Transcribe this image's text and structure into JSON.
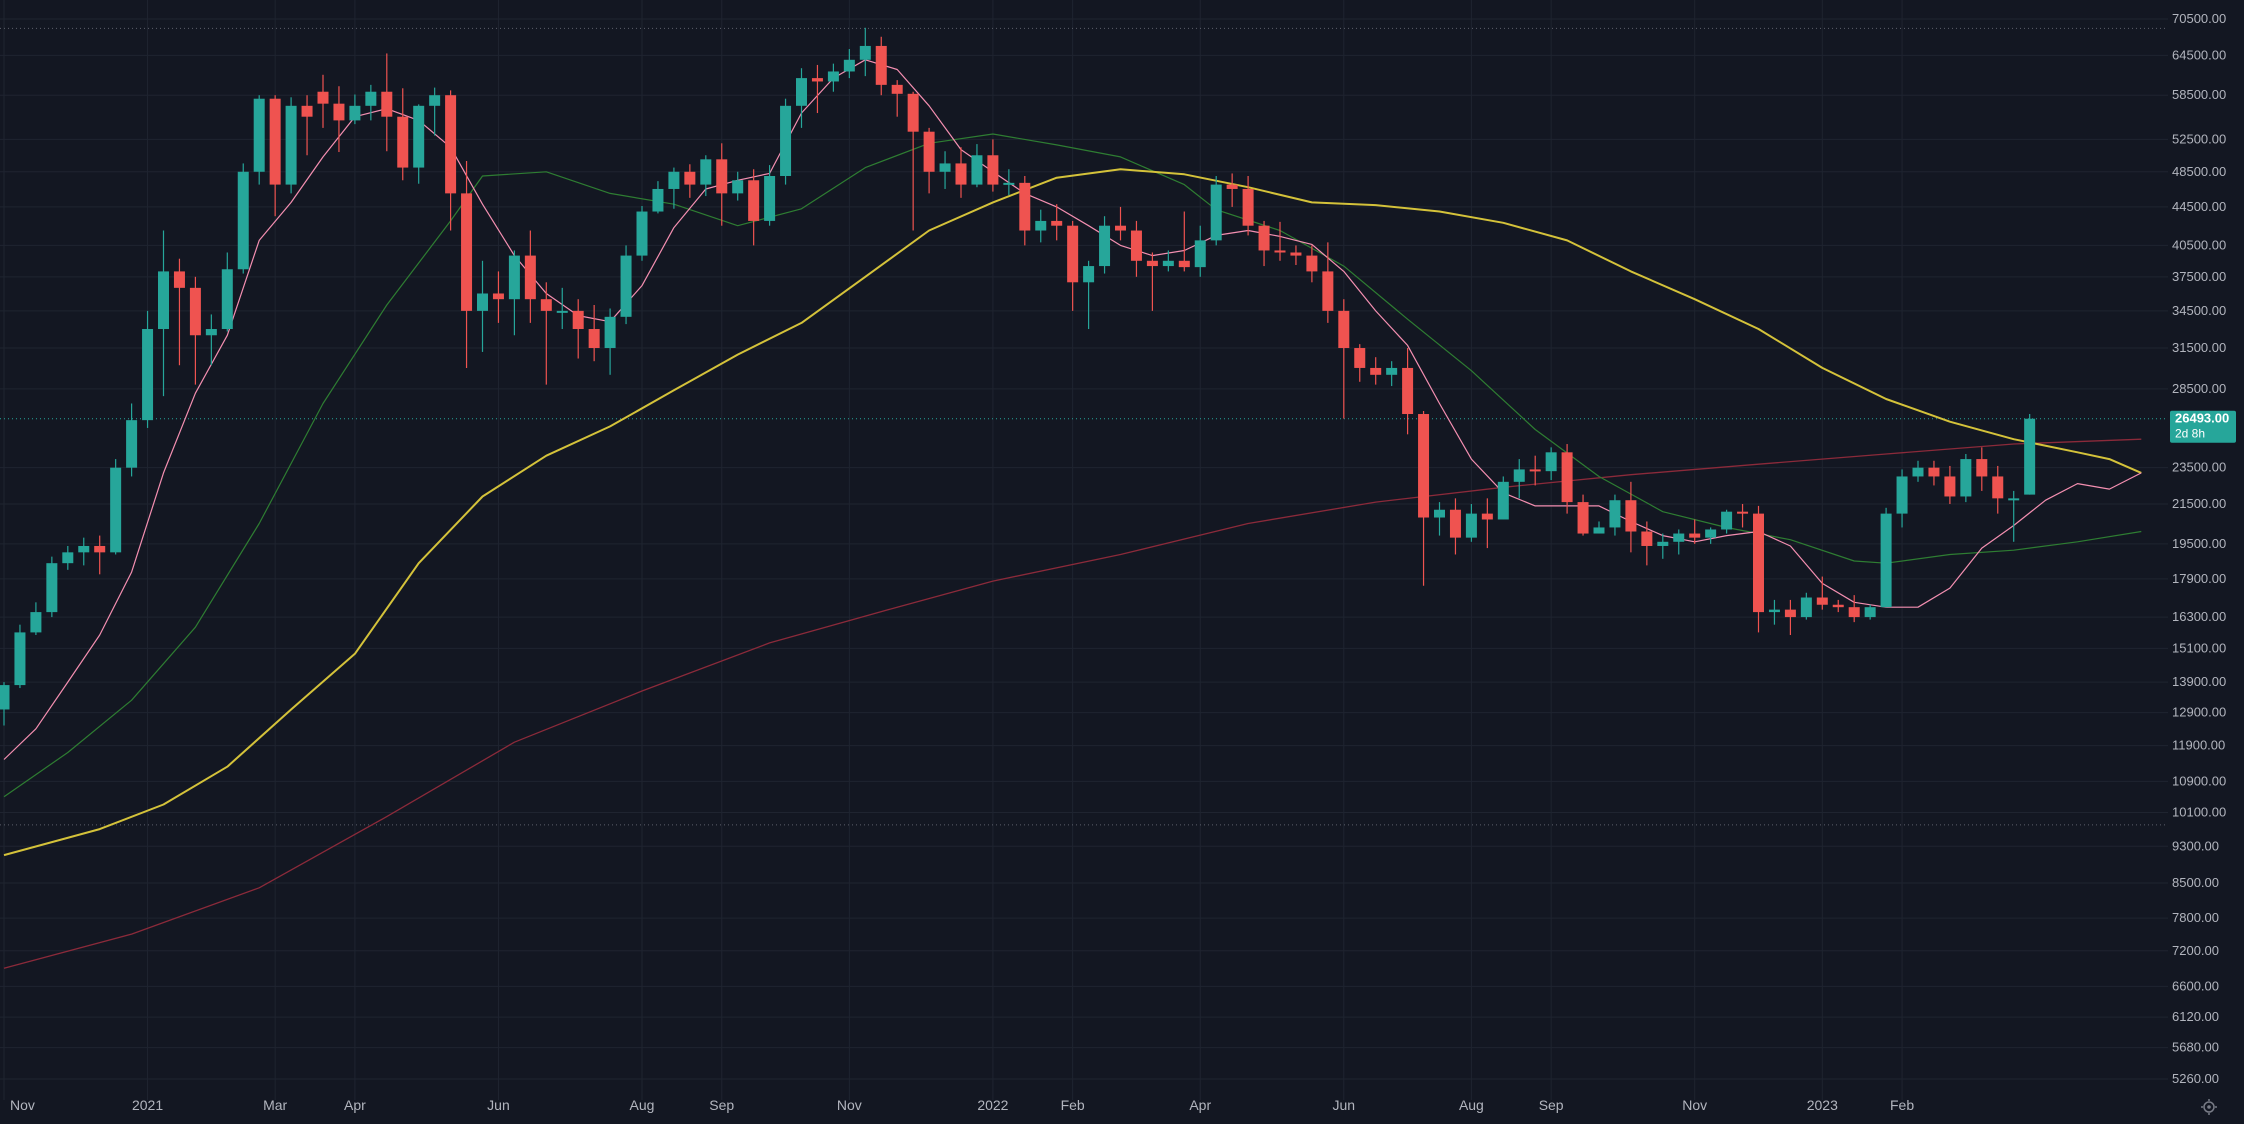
{
  "colors": {
    "background": "#131722",
    "grid": "#1f2430",
    "up": "#26a69a",
    "down": "#ef5350",
    "ma_short": "#f48fb1",
    "ma_mid": "#2e7d32",
    "ma_long": "#d4c23a",
    "ma_200": "#8b2a3a",
    "axis_text": "#b2b5be",
    "price_line": "#26a69a",
    "ref_line": "#5d606b"
  },
  "chart_data": {
    "type": "candlestick",
    "scale": "log",
    "ylim": [
      5000,
      71500
    ],
    "y_ticks": [
      "70500.00",
      "64500.00",
      "58500.00",
      "52500.00",
      "48500.00",
      "44500.00",
      "40500.00",
      "37500.00",
      "34500.00",
      "31500.00",
      "28500.00",
      "23500.00",
      "21500.00",
      "19500.00",
      "17900.00",
      "16300.00",
      "15100.00",
      "13900.00",
      "12900.00",
      "11900.00",
      "10900.00",
      "10100.00",
      "9300.00",
      "8500.00",
      "7800.00",
      "7200.00",
      "6600.00",
      "6120.00",
      "5680.00",
      "5260.00"
    ],
    "x_labels": [
      {
        "label": "Nov",
        "w": 0
      },
      {
        "label": "2021",
        "w": 9
      },
      {
        "label": "Mar",
        "w": 17
      },
      {
        "label": "Apr",
        "w": 22
      },
      {
        "label": "Jun",
        "w": 31
      },
      {
        "label": "Aug",
        "w": 40
      },
      {
        "label": "Sep",
        "w": 45
      },
      {
        "label": "Nov",
        "w": 53
      },
      {
        "label": "2022",
        "w": 62
      },
      {
        "label": "Feb",
        "w": 67
      },
      {
        "label": "Apr",
        "w": 75
      },
      {
        "label": "Jun",
        "w": 84
      },
      {
        "label": "Aug",
        "w": 92
      },
      {
        "label": "Sep",
        "w": 97
      },
      {
        "label": "Nov",
        "w": 106
      },
      {
        "label": "2023",
        "w": 114
      },
      {
        "label": "Feb",
        "w": 119
      }
    ],
    "candles": [
      [
        13000,
        13800,
        12500,
        13900
      ],
      [
        13800,
        15700,
        13700,
        16000
      ],
      [
        15700,
        16500,
        15600,
        16900
      ],
      [
        16500,
        18600,
        16300,
        18900
      ],
      [
        18600,
        19100,
        18300,
        19400
      ],
      [
        19100,
        19400,
        18500,
        19800
      ],
      [
        19400,
        19100,
        18100,
        19900
      ],
      [
        19100,
        23500,
        19000,
        24000
      ],
      [
        23500,
        26400,
        23000,
        27500
      ],
      [
        26400,
        33000,
        25900,
        34500
      ],
      [
        33000,
        38000,
        28000,
        42000
      ],
      [
        38000,
        36500,
        30200,
        39200
      ],
      [
        36500,
        32500,
        28800,
        37500
      ],
      [
        32500,
        33000,
        30200,
        34200
      ],
      [
        33000,
        38200,
        32800,
        39800
      ],
      [
        38200,
        48500,
        37800,
        49500
      ],
      [
        48500,
        58000,
        47000,
        58500
      ],
      [
        58000,
        47000,
        43500,
        58500
      ],
      [
        47000,
        57000,
        46000,
        58200
      ],
      [
        57000,
        55500,
        50500,
        58500
      ],
      [
        59000,
        57300,
        54000,
        61500
      ],
      [
        57300,
        55000,
        50900,
        59800
      ],
      [
        55000,
        57000,
        54500,
        58600
      ],
      [
        57000,
        59000,
        55000,
        60000
      ],
      [
        59000,
        55500,
        51000,
        64800
      ],
      [
        55500,
        49000,
        47500,
        59500
      ],
      [
        49000,
        57000,
        47100,
        57200
      ],
      [
        57000,
        58500,
        53000,
        59600
      ],
      [
        58500,
        46000,
        42000,
        59200
      ],
      [
        46000,
        34500,
        30000,
        49800
      ],
      [
        34500,
        36000,
        31200,
        39000
      ],
      [
        36000,
        35500,
        33500,
        38000
      ],
      [
        35500,
        39500,
        32500,
        40000
      ],
      [
        39500,
        35500,
        33500,
        42000
      ],
      [
        35500,
        34500,
        28800,
        37000
      ],
      [
        34500,
        34500,
        33000,
        36500
      ],
      [
        34500,
        33000,
        30700,
        35500
      ],
      [
        33000,
        31500,
        30500,
        35000
      ],
      [
        31500,
        34000,
        29500,
        34700
      ],
      [
        34000,
        39500,
        33400,
        40500
      ],
      [
        39500,
        44000,
        39000,
        44600
      ],
      [
        44000,
        46500,
        43800,
        47400
      ],
      [
        46500,
        48500,
        44300,
        49000
      ],
      [
        48500,
        47000,
        45500,
        49400
      ],
      [
        47000,
        50000,
        45700,
        50500
      ],
      [
        50000,
        46000,
        42500,
        52000
      ],
      [
        46000,
        47500,
        45200,
        48500
      ],
      [
        47500,
        43000,
        40500,
        48800
      ],
      [
        43000,
        48000,
        42500,
        49300
      ],
      [
        48000,
        57000,
        47000,
        58000
      ],
      [
        57000,
        61000,
        54000,
        62500
      ],
      [
        61000,
        60500,
        56000,
        63000
      ],
      [
        60500,
        62000,
        59000,
        63200
      ],
      [
        62000,
        63800,
        61000,
        65500
      ],
      [
        63800,
        66000,
        61300,
        69000
      ],
      [
        66000,
        60000,
        58500,
        67500
      ],
      [
        60000,
        58700,
        55500,
        60700
      ],
      [
        58700,
        53500,
        42000,
        59000
      ],
      [
        53500,
        48500,
        46000,
        54000
      ],
      [
        48500,
        49500,
        46500,
        51000
      ],
      [
        49500,
        47000,
        45500,
        51500
      ],
      [
        47000,
        50500,
        46700,
        51900
      ],
      [
        50500,
        47000,
        46200,
        52500
      ],
      [
        47000,
        47200,
        45800,
        48800
      ],
      [
        47200,
        42000,
        40500,
        48000
      ],
      [
        42000,
        43000,
        40800,
        44200
      ],
      [
        43000,
        42500,
        41000,
        44800
      ],
      [
        42500,
        37000,
        34500,
        43000
      ],
      [
        37000,
        38500,
        33000,
        39000
      ],
      [
        38500,
        42500,
        37800,
        43500
      ],
      [
        42500,
        42000,
        41000,
        44500
      ],
      [
        42000,
        39000,
        37500,
        43000
      ],
      [
        39000,
        38500,
        34500,
        39800
      ],
      [
        38500,
        39000,
        38000,
        40000
      ],
      [
        39000,
        38400,
        38000,
        44000
      ],
      [
        38400,
        41000,
        37500,
        42500
      ],
      [
        41000,
        47000,
        40500,
        48000
      ],
      [
        47000,
        46500,
        44500,
        48300
      ],
      [
        46500,
        42500,
        41500,
        48000
      ],
      [
        42500,
        40000,
        38500,
        43000
      ],
      [
        40000,
        39800,
        39000,
        42900
      ],
      [
        39800,
        39500,
        38600,
        40500
      ],
      [
        39500,
        38000,
        37000,
        40500
      ],
      [
        38000,
        34500,
        33500,
        40800
      ],
      [
        34500,
        31500,
        26500,
        35500
      ],
      [
        31500,
        30000,
        29000,
        31800
      ],
      [
        30000,
        29500,
        28800,
        30800
      ],
      [
        29500,
        30000,
        28700,
        30500
      ],
      [
        30000,
        26800,
        25500,
        31500
      ],
      [
        26800,
        20800,
        17600,
        27000
      ],
      [
        20800,
        21200,
        19900,
        21600
      ],
      [
        21200,
        19800,
        19000,
        21800
      ],
      [
        19800,
        21000,
        19600,
        21500
      ],
      [
        21000,
        20700,
        19300,
        21800
      ],
      [
        20700,
        22700,
        20700,
        23000
      ],
      [
        22700,
        23400,
        21800,
        24000
      ],
      [
        23400,
        23300,
        22500,
        24200
      ],
      [
        23300,
        24400,
        22800,
        24700
      ],
      [
        24400,
        21600,
        21000,
        24900
      ],
      [
        21600,
        20000,
        19900,
        22000
      ],
      [
        20000,
        20300,
        20000,
        20600
      ],
      [
        20300,
        21700,
        19900,
        22000
      ],
      [
        21700,
        20100,
        19100,
        22700
      ],
      [
        20100,
        19400,
        18500,
        20600
      ],
      [
        19400,
        19600,
        18800,
        20000
      ],
      [
        19600,
        20000,
        19000,
        20200
      ],
      [
        20000,
        19800,
        19500,
        20700
      ],
      [
        19800,
        20200,
        19500,
        20300
      ],
      [
        20200,
        21100,
        20000,
        21200
      ],
      [
        21100,
        21000,
        20300,
        21500
      ],
      [
        21000,
        16500,
        15700,
        21400
      ],
      [
        16500,
        16600,
        16000,
        17000
      ],
      [
        16600,
        16300,
        15600,
        17000
      ],
      [
        16300,
        17100,
        16200,
        17300
      ],
      [
        17100,
        16800,
        16600,
        18000
      ],
      [
        16800,
        16700,
        16500,
        17000
      ],
      [
        16700,
        16300,
        16100,
        17200
      ],
      [
        16300,
        16700,
        16200,
        16800
      ],
      [
        16700,
        21000,
        16700,
        21300
      ],
      [
        21000,
        23000,
        20300,
        23400
      ],
      [
        23000,
        23500,
        22700,
        23900
      ],
      [
        23500,
        23000,
        22500,
        23900
      ],
      [
        23000,
        21900,
        21500,
        23600
      ],
      [
        21900,
        24000,
        21600,
        24300
      ],
      [
        24000,
        23000,
        22200,
        24700
      ],
      [
        23000,
        21800,
        21000,
        23600
      ],
      [
        21800,
        21800,
        19600,
        22200
      ],
      [
        22000,
        26493,
        22000,
        26800
      ]
    ],
    "ma_short": [
      [
        0,
        11500
      ],
      [
        2,
        12400
      ],
      [
        4,
        13900
      ],
      [
        6,
        15600
      ],
      [
        8,
        18200
      ],
      [
        10,
        23200
      ],
      [
        12,
        28200
      ],
      [
        14,
        32500
      ],
      [
        16,
        41000
      ],
      [
        18,
        45000
      ],
      [
        20,
        50300
      ],
      [
        22,
        55500
      ],
      [
        24,
        56600
      ],
      [
        26,
        55000
      ],
      [
        28,
        51500
      ],
      [
        30,
        44800
      ],
      [
        32,
        39500
      ],
      [
        34,
        36000
      ],
      [
        36,
        34100
      ],
      [
        38,
        33600
      ],
      [
        40,
        36700
      ],
      [
        42,
        42300
      ],
      [
        44,
        46500
      ],
      [
        46,
        47500
      ],
      [
        48,
        48300
      ],
      [
        50,
        56000
      ],
      [
        52,
        61000
      ],
      [
        54,
        63800
      ],
      [
        56,
        62300
      ],
      [
        58,
        57000
      ],
      [
        60,
        51200
      ],
      [
        62,
        48500
      ],
      [
        64,
        46000
      ],
      [
        66,
        44500
      ],
      [
        68,
        42500
      ],
      [
        70,
        40500
      ],
      [
        72,
        39500
      ],
      [
        74,
        40000
      ],
      [
        76,
        41500
      ],
      [
        78,
        42000
      ],
      [
        80,
        41400
      ],
      [
        82,
        40600
      ],
      [
        84,
        38000
      ],
      [
        86,
        34500
      ],
      [
        88,
        31700
      ],
      [
        90,
        27500
      ],
      [
        92,
        24000
      ],
      [
        94,
        22100
      ],
      [
        96,
        21400
      ],
      [
        98,
        21400
      ],
      [
        100,
        21400
      ],
      [
        102,
        20600
      ],
      [
        104,
        19900
      ],
      [
        106,
        19600
      ],
      [
        108,
        19900
      ],
      [
        110,
        20100
      ],
      [
        112,
        19400
      ],
      [
        114,
        17700
      ],
      [
        116,
        16900
      ],
      [
        118,
        16700
      ],
      [
        120,
        16700
      ],
      [
        122,
        17500
      ],
      [
        124,
        19300
      ],
      [
        126,
        20400
      ],
      [
        128,
        21700
      ],
      [
        130,
        22600
      ],
      [
        132,
        22300
      ],
      [
        134,
        23200
      ]
    ],
    "ma_mid": [
      [
        0,
        10500
      ],
      [
        4,
        11700
      ],
      [
        8,
        13300
      ],
      [
        12,
        15900
      ],
      [
        16,
        20500
      ],
      [
        20,
        27500
      ],
      [
        24,
        35000
      ],
      [
        28,
        43000
      ],
      [
        30,
        48000
      ],
      [
        34,
        48500
      ],
      [
        38,
        46000
      ],
      [
        42,
        44800
      ],
      [
        46,
        42500
      ],
      [
        50,
        44300
      ],
      [
        54,
        49000
      ],
      [
        58,
        52000
      ],
      [
        62,
        53200
      ],
      [
        66,
        51800
      ],
      [
        70,
        50300
      ],
      [
        74,
        47000
      ],
      [
        76,
        44200
      ],
      [
        80,
        42000
      ],
      [
        84,
        38500
      ],
      [
        88,
        33800
      ],
      [
        92,
        29800
      ],
      [
        96,
        25800
      ],
      [
        100,
        23000
      ],
      [
        104,
        21100
      ],
      [
        108,
        20300
      ],
      [
        112,
        19700
      ],
      [
        116,
        18700
      ],
      [
        118,
        18600
      ],
      [
        122,
        19000
      ],
      [
        126,
        19200
      ],
      [
        130,
        19600
      ],
      [
        134,
        20100
      ]
    ],
    "ma_long": [
      [
        0,
        9100
      ],
      [
        6,
        9700
      ],
      [
        10,
        10300
      ],
      [
        14,
        11300
      ],
      [
        18,
        13000
      ],
      [
        22,
        14900
      ],
      [
        26,
        18600
      ],
      [
        30,
        21900
      ],
      [
        34,
        24200
      ],
      [
        38,
        26000
      ],
      [
        42,
        28400
      ],
      [
        46,
        31000
      ],
      [
        50,
        33500
      ],
      [
        54,
        37500
      ],
      [
        58,
        42000
      ],
      [
        62,
        45000
      ],
      [
        66,
        47800
      ],
      [
        70,
        48800
      ],
      [
        74,
        48200
      ],
      [
        78,
        46700
      ],
      [
        82,
        45000
      ],
      [
        86,
        44700
      ],
      [
        90,
        44000
      ],
      [
        94,
        42800
      ],
      [
        98,
        41000
      ],
      [
        102,
        38000
      ],
      [
        106,
        35500
      ],
      [
        110,
        33000
      ],
      [
        114,
        30000
      ],
      [
        118,
        27800
      ],
      [
        122,
        26300
      ],
      [
        126,
        25200
      ],
      [
        130,
        24400
      ],
      [
        132,
        24000
      ],
      [
        134,
        23200
      ]
    ],
    "ma_200": [
      [
        0,
        6900
      ],
      [
        8,
        7500
      ],
      [
        16,
        8400
      ],
      [
        24,
        10000
      ],
      [
        32,
        12000
      ],
      [
        40,
        13600
      ],
      [
        48,
        15300
      ],
      [
        56,
        16700
      ],
      [
        62,
        17800
      ],
      [
        70,
        19000
      ],
      [
        78,
        20500
      ],
      [
        86,
        21600
      ],
      [
        94,
        22400
      ],
      [
        102,
        23100
      ],
      [
        110,
        23700
      ],
      [
        118,
        24300
      ],
      [
        126,
        24900
      ],
      [
        134,
        25200
      ]
    ],
    "current_price": "26493.00",
    "countdown": "2d 8h",
    "ref_lines": [
      68900,
      26493,
      9800
    ]
  }
}
